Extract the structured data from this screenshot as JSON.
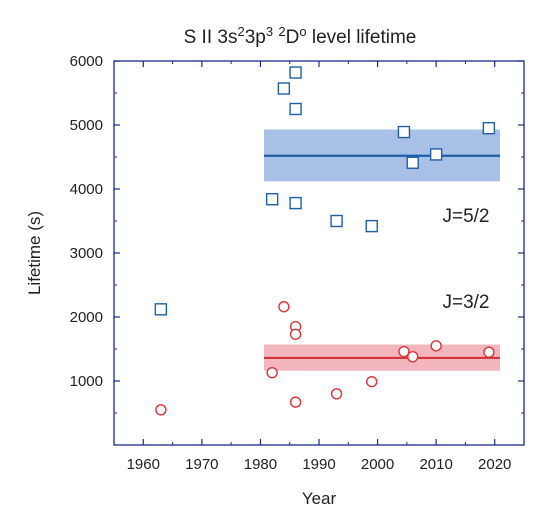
{
  "chart_data": {
    "type": "scatter",
    "title": {
      "parts": [
        {
          "text": "S II  3s",
          "shift": "none"
        },
        {
          "text": "2",
          "shift": "super"
        },
        {
          "text": "3p",
          "shift": "none"
        },
        {
          "text": "3",
          "shift": "super"
        },
        {
          "text": " ",
          "shift": "none"
        },
        {
          "text": "2",
          "shift": "super"
        },
        {
          "text": "D",
          "shift": "none"
        },
        {
          "text": "o",
          "shift": "super"
        },
        {
          "text": " level lifetime",
          "shift": "none"
        }
      ]
    },
    "xlabel": "Year",
    "ylabel": "Lifetime (s)",
    "xlim": [
      1955,
      2025
    ],
    "ylim": [
      0,
      6000
    ],
    "xticks": [
      "1960",
      "1970",
      "1980",
      "1990",
      "2000",
      "2010",
      "2020"
    ],
    "yticks": [
      "1000",
      "2000",
      "3000",
      "4000",
      "5000",
      "6000"
    ],
    "grid": false,
    "series": [
      {
        "name": "J=5/2",
        "marker": "square",
        "color": "#1f5fa8",
        "band_color": "#a9c0e6",
        "mean": 4520,
        "band": [
          4120,
          4930
        ],
        "band_x": [
          1980.6,
          2020.9
        ],
        "points": [
          {
            "x": 1963,
            "y": 2120
          },
          {
            "x": 1982,
            "y": 3840
          },
          {
            "x": 1984,
            "y": 5570
          },
          {
            "x": 1986,
            "y": 5820
          },
          {
            "x": 1986,
            "y": 5250
          },
          {
            "x": 1986,
            "y": 3780
          },
          {
            "x": 1993,
            "y": 3500
          },
          {
            "x": 1999,
            "y": 3420
          },
          {
            "x": 2004.5,
            "y": 4890
          },
          {
            "x": 2006,
            "y": 4410
          },
          {
            "x": 2010,
            "y": 4540
          },
          {
            "x": 2019,
            "y": 4950
          }
        ]
      },
      {
        "name": "J=3/2",
        "marker": "circle",
        "color": "#d6363b",
        "band_color": "#f2b6bc",
        "mean": 1360,
        "band": [
          1160,
          1570
        ],
        "band_x": [
          1980.6,
          2020.9
        ],
        "points": [
          {
            "x": 1963,
            "y": 550
          },
          {
            "x": 1982,
            "y": 1130
          },
          {
            "x": 1984,
            "y": 2160
          },
          {
            "x": 1986,
            "y": 1850
          },
          {
            "x": 1986,
            "y": 1730
          },
          {
            "x": 1986,
            "y": 670
          },
          {
            "x": 1993,
            "y": 800
          },
          {
            "x": 1999,
            "y": 990
          },
          {
            "x": 2004.5,
            "y": 1460
          },
          {
            "x": 2006,
            "y": 1380
          },
          {
            "x": 2010,
            "y": 1550
          },
          {
            "x": 2019,
            "y": 1450
          }
        ]
      }
    ],
    "colors": {
      "axis": "#1a2b8c",
      "text": "#222222"
    }
  }
}
